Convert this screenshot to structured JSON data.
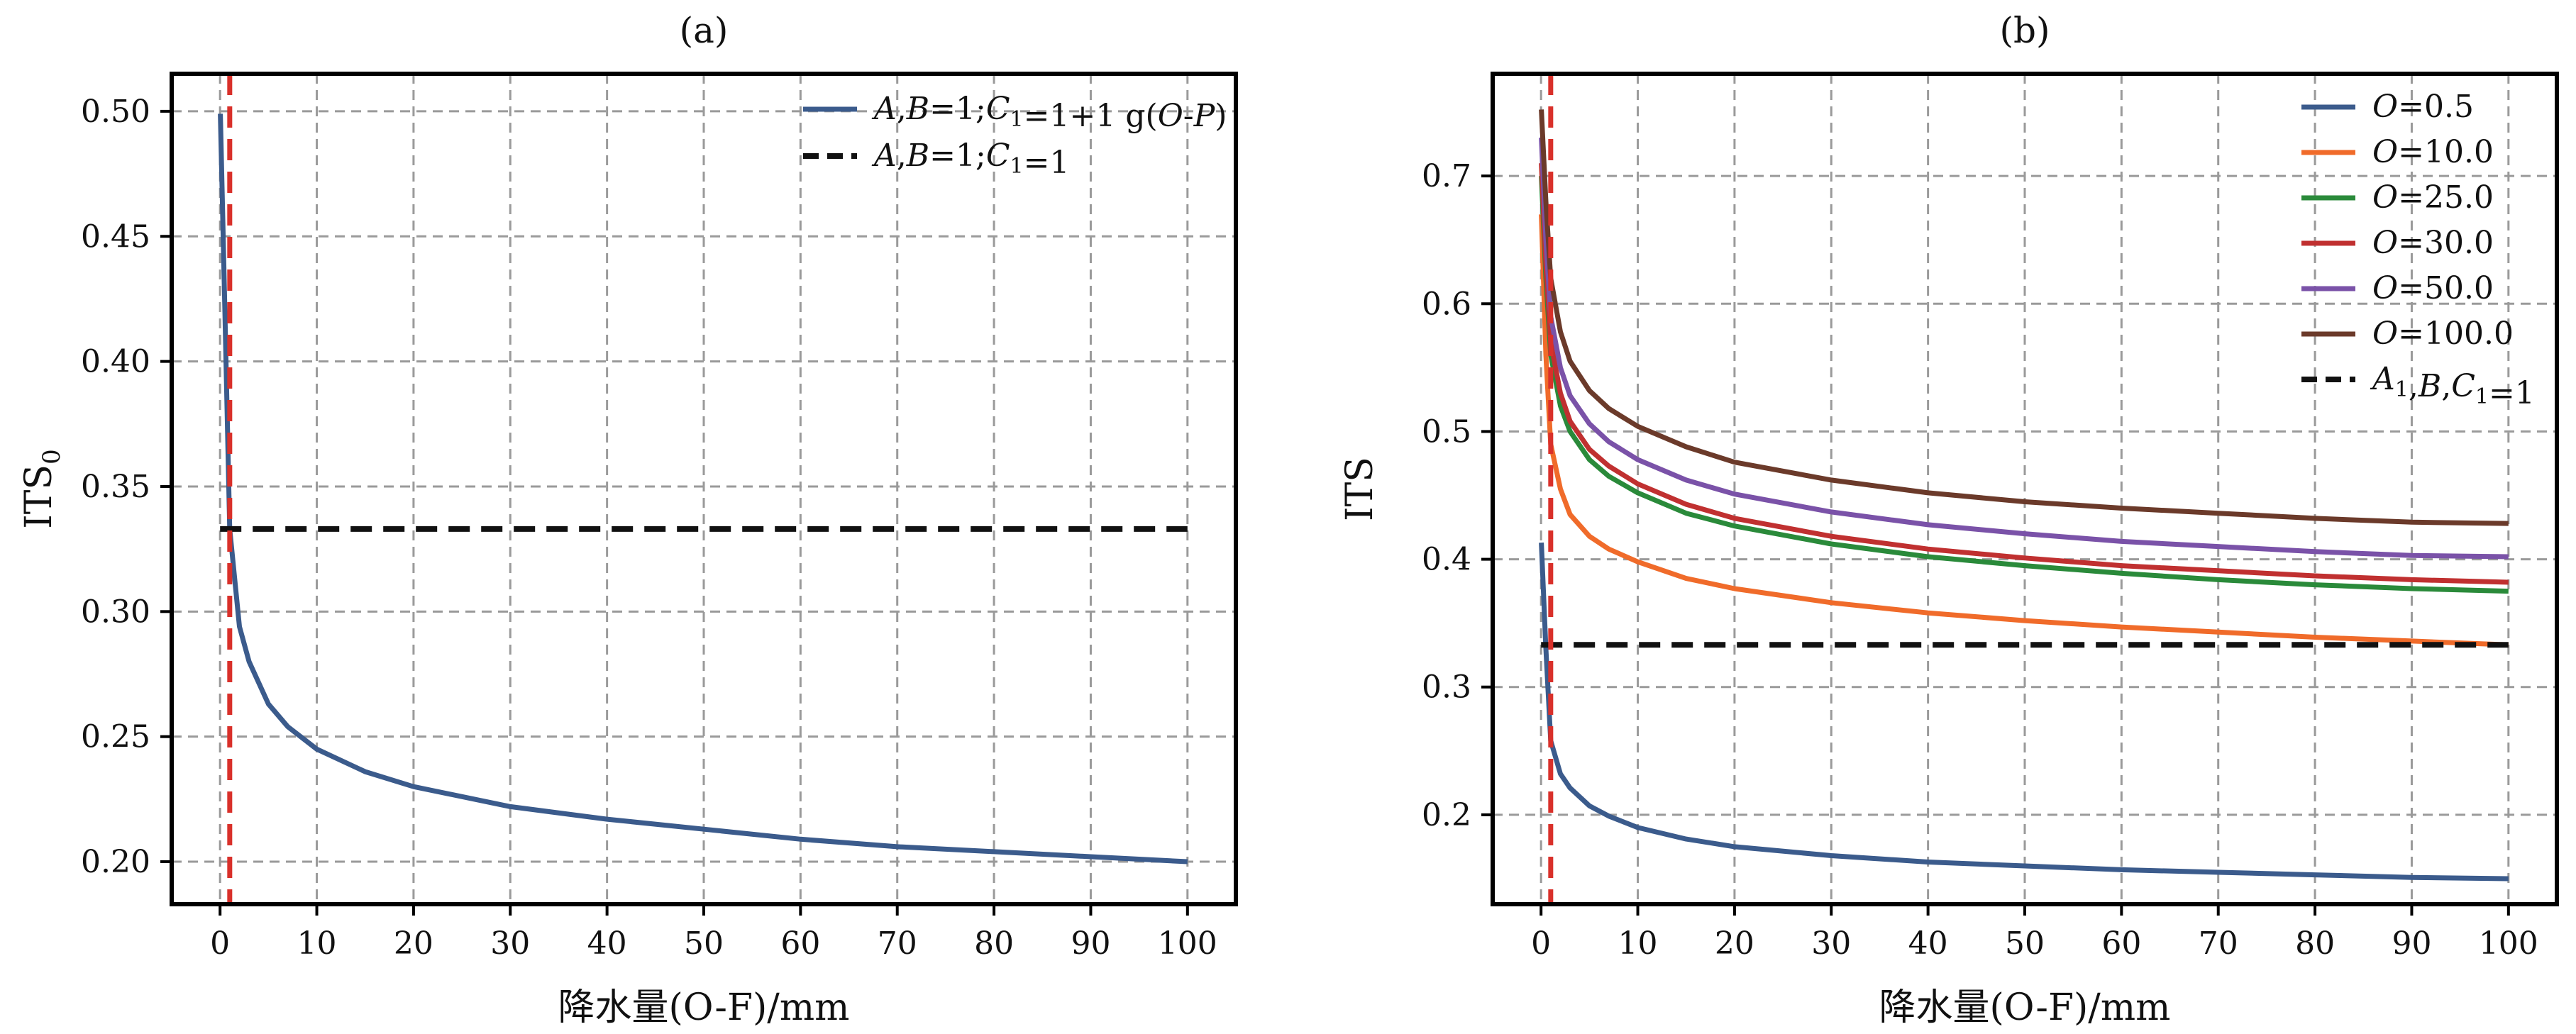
{
  "chart_data": [
    {
      "type": "line",
      "panel_label": "(a)",
      "xlabel": "降水量(O-F)/mm",
      "ylabel": "ITS",
      "ylabel_sub": "0",
      "xlim": [
        -5,
        105
      ],
      "ylim": [
        0.183,
        0.515
      ],
      "xticks": [
        0,
        10,
        20,
        30,
        40,
        50,
        60,
        70,
        80,
        90,
        100
      ],
      "xtick_labels": [
        "0",
        "10",
        "20",
        "30",
        "40",
        "50",
        "60",
        "70",
        "80",
        "90",
        "100"
      ],
      "yticks": [
        0.2,
        0.25,
        0.3,
        0.35,
        0.4,
        0.45,
        0.5
      ],
      "ytick_labels": [
        "0.20",
        "0.25",
        "0.30",
        "0.35",
        "0.40",
        "0.45",
        "0.50"
      ],
      "grid": true,
      "legend_position": "top-right",
      "vertical_reference_x": 1,
      "series": [
        {
          "name": "A,B=1;C1=1+1 g(O-P)",
          "color": "#3b5b8c",
          "style": "solid",
          "x": [
            0.03,
            0.5,
            1,
            2,
            3,
            5,
            7,
            10,
            15,
            20,
            30,
            40,
            50,
            60,
            70,
            80,
            90,
            100
          ],
          "y": [
            0.499,
            0.42,
            0.333,
            0.294,
            0.28,
            0.263,
            0.254,
            0.245,
            0.236,
            0.23,
            0.222,
            0.217,
            0.213,
            0.209,
            0.206,
            0.204,
            0.202,
            0.2
          ]
        },
        {
          "name": "A,B=1;C1=1",
          "color": "#111111",
          "style": "dashed",
          "x": [
            0,
            100
          ],
          "y": [
            0.333,
            0.333
          ]
        }
      ]
    },
    {
      "type": "line",
      "panel_label": "(b)",
      "xlabel": "降水量(O-F)/mm",
      "ylabel": "ITS",
      "ylabel_sub": "",
      "xlim": [
        -5,
        105
      ],
      "ylim": [
        0.13,
        0.78
      ],
      "xticks": [
        0,
        10,
        20,
        30,
        40,
        50,
        60,
        70,
        80,
        90,
        100
      ],
      "xtick_labels": [
        "0",
        "10",
        "20",
        "30",
        "40",
        "50",
        "60",
        "70",
        "80",
        "90",
        "100"
      ],
      "yticks": [
        0.2,
        0.3,
        0.4,
        0.5,
        0.6,
        0.7
      ],
      "ytick_labels": [
        "0.2",
        "0.3",
        "0.4",
        "0.5",
        "0.6",
        "0.7"
      ],
      "grid": true,
      "legend_position": "top-right",
      "vertical_reference_x": 1,
      "series": [
        {
          "name": "O=0.5",
          "color": "#3b5b8c",
          "style": "solid",
          "x": [
            0.03,
            0.5,
            1,
            2,
            3,
            5,
            7,
            10,
            15,
            20,
            30,
            40,
            50,
            60,
            70,
            80,
            90,
            100
          ],
          "y": [
            0.413,
            0.33,
            0.258,
            0.232,
            0.221,
            0.207,
            0.199,
            0.19,
            0.181,
            0.175,
            0.168,
            0.163,
            0.16,
            0.157,
            0.155,
            0.153,
            0.151,
            0.15
          ]
        },
        {
          "name": "O=10.0",
          "color": "#f06b2a",
          "style": "solid",
          "x": [
            0.03,
            0.5,
            1,
            2,
            3,
            5,
            7,
            10,
            15,
            20,
            30,
            40,
            50,
            60,
            70,
            80,
            90,
            100
          ],
          "y": [
            0.67,
            0.56,
            0.49,
            0.455,
            0.435,
            0.418,
            0.408,
            0.398,
            0.385,
            0.377,
            0.366,
            0.358,
            0.352,
            0.347,
            0.343,
            0.339,
            0.336,
            0.333
          ]
        },
        {
          "name": "O=25.0",
          "color": "#2a8a3a",
          "style": "solid",
          "x": [
            0.03,
            0.5,
            1,
            2,
            3,
            5,
            7,
            10,
            15,
            20,
            30,
            40,
            50,
            60,
            70,
            80,
            90,
            100
          ],
          "y": [
            0.7,
            0.62,
            0.56,
            0.52,
            0.5,
            0.478,
            0.465,
            0.452,
            0.436,
            0.426,
            0.412,
            0.402,
            0.395,
            0.389,
            0.384,
            0.38,
            0.377,
            0.375
          ]
        },
        {
          "name": "O=30.0",
          "color": "#c03030",
          "style": "solid",
          "x": [
            0.03,
            0.5,
            1,
            2,
            3,
            5,
            7,
            10,
            15,
            20,
            30,
            40,
            50,
            60,
            70,
            80,
            90,
            100
          ],
          "y": [
            0.71,
            0.63,
            0.57,
            0.53,
            0.508,
            0.486,
            0.473,
            0.459,
            0.443,
            0.432,
            0.418,
            0.408,
            0.401,
            0.395,
            0.391,
            0.387,
            0.384,
            0.382
          ]
        },
        {
          "name": "O=50.0",
          "color": "#7a52a8",
          "style": "solid",
          "x": [
            0.03,
            0.5,
            1,
            2,
            3,
            5,
            7,
            10,
            15,
            20,
            30,
            40,
            50,
            60,
            70,
            80,
            90,
            100
          ],
          "y": [
            0.73,
            0.65,
            0.59,
            0.55,
            0.528,
            0.506,
            0.492,
            0.478,
            0.462,
            0.451,
            0.437,
            0.427,
            0.42,
            0.414,
            0.41,
            0.406,
            0.403,
            0.402
          ]
        },
        {
          "name": "O=100.0",
          "color": "#6b3a2a",
          "style": "solid",
          "x": [
            0.03,
            0.5,
            1,
            2,
            3,
            5,
            7,
            10,
            15,
            20,
            30,
            40,
            50,
            60,
            70,
            80,
            90,
            100
          ],
          "y": [
            0.752,
            0.68,
            0.62,
            0.578,
            0.555,
            0.532,
            0.518,
            0.504,
            0.488,
            0.476,
            0.462,
            0.452,
            0.445,
            0.44,
            0.436,
            0.432,
            0.429,
            0.428
          ]
        },
        {
          "name": "A1,B,C1=1",
          "color": "#111111",
          "style": "dashed",
          "x": [
            0,
            100
          ],
          "y": [
            0.333,
            0.333
          ]
        }
      ]
    }
  ],
  "colors": {
    "reference_line": "#d9302a",
    "grid": "#9a9a9a",
    "axes": "#000000"
  }
}
